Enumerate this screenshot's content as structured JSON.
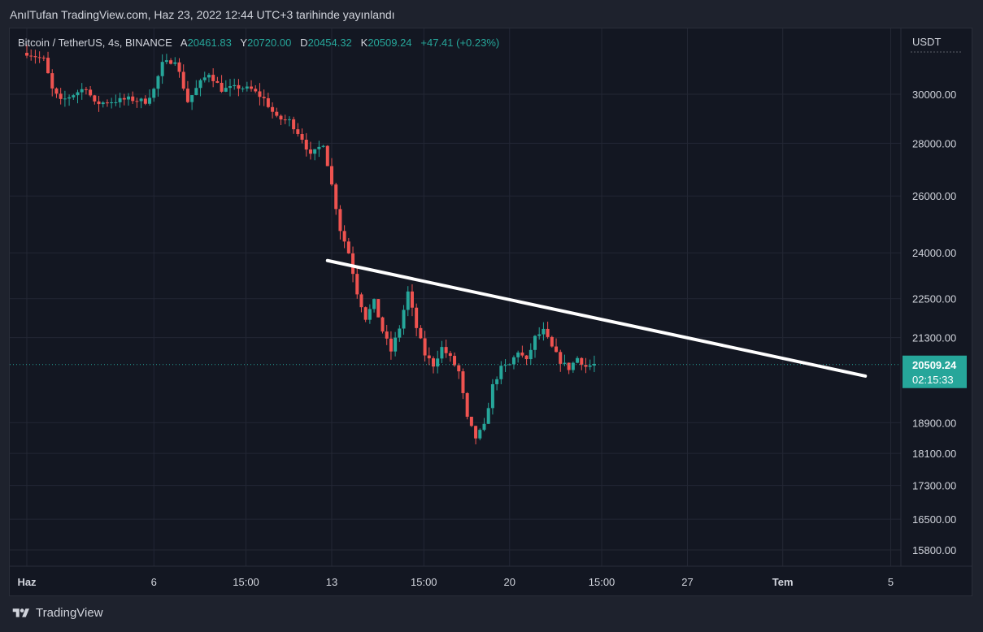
{
  "header": {
    "published_line": "AnılTufan TradingView.com, Haz 23, 2022 12:44 UTC+3 tarihinde yayınlandı"
  },
  "legend": {
    "symbol": "Bitcoin / TetherUS, 4s, BINANCE",
    "open_label": "A",
    "open_value": "20461.83",
    "high_label": "Y",
    "high_value": "20720.00",
    "low_label": "D",
    "low_value": "20454.32",
    "close_label": "K",
    "close_value": "20509.24",
    "change": "+47.41 (+0.23%)"
  },
  "footer": {
    "brand": "TradingView"
  },
  "colors": {
    "up": "#26a69a",
    "down": "#ef5350",
    "background": "#131722",
    "grid": "#232734",
    "text": "#d1d4dc",
    "trendline": "#ffffff"
  },
  "chart_data": {
    "type": "candlestick",
    "currency_label": "USDT",
    "y_ticks": [
      "30000.00",
      "28000.00",
      "26000.00",
      "24000.00",
      "22500.00",
      "21300.00",
      "18900.00",
      "18100.00",
      "17300.00",
      "16500.00",
      "15800.00"
    ],
    "x_ticks": [
      "Haz",
      "6",
      "15:00",
      "13",
      "15:00",
      "20",
      "15:00",
      "27",
      "Tem",
      "5"
    ],
    "last_price": "20509.24",
    "countdown": "02:15:33",
    "trendline": {
      "from": {
        "date": "2022-06-12 20:00",
        "price": 23740
      },
      "to": {
        "date": "2022-07-04 00:00",
        "price": 20180
      }
    },
    "price_path": [
      [
        "2022-06-01 00:00",
        31800
      ],
      [
        "2022-06-01 16:00",
        31500
      ],
      [
        "2022-06-02 00:00",
        30200
      ],
      [
        "2022-06-02 08:00",
        29700
      ],
      [
        "2022-06-02 20:00",
        30000
      ],
      [
        "2022-06-03 08:00",
        30300
      ],
      [
        "2022-06-03 16:00",
        29600
      ],
      [
        "2022-06-04 08:00",
        29700
      ],
      [
        "2022-06-05 00:00",
        29800
      ],
      [
        "2022-06-05 16:00",
        29700
      ],
      [
        "2022-06-06 00:00",
        30200
      ],
      [
        "2022-06-06 08:00",
        31300
      ],
      [
        "2022-06-06 20:00",
        31500
      ],
      [
        "2022-06-07 08:00",
        29700
      ],
      [
        "2022-06-07 20:00",
        30500
      ],
      [
        "2022-06-08 04:00",
        30900
      ],
      [
        "2022-06-08 16:00",
        30200
      ],
      [
        "2022-06-09 08:00",
        30300
      ],
      [
        "2022-06-09 20:00",
        30200
      ],
      [
        "2022-06-10 08:00",
        29800
      ],
      [
        "2022-06-10 20:00",
        29000
      ],
      [
        "2022-06-11 08:00",
        28900
      ],
      [
        "2022-06-11 20:00",
        28200
      ],
      [
        "2022-06-12 04:00",
        27500
      ],
      [
        "2022-06-12 16:00",
        28000
      ],
      [
        "2022-06-13 00:00",
        26400
      ],
      [
        "2022-06-13 08:00",
        24800
      ],
      [
        "2022-06-13 16:00",
        24000
      ],
      [
        "2022-06-14 00:00",
        22700
      ],
      [
        "2022-06-14 08:00",
        21900
      ],
      [
        "2022-06-14 16:00",
        22400
      ],
      [
        "2022-06-15 00:00",
        21500
      ],
      [
        "2022-06-15 08:00",
        20900
      ],
      [
        "2022-06-15 16:00",
        21600
      ],
      [
        "2022-06-16 00:00",
        22700
      ],
      [
        "2022-06-16 08:00",
        21600
      ],
      [
        "2022-06-16 16:00",
        20800
      ],
      [
        "2022-06-17 00:00",
        20500
      ],
      [
        "2022-06-17 08:00",
        21000
      ],
      [
        "2022-06-17 16:00",
        20700
      ],
      [
        "2022-06-18 00:00",
        20300
      ],
      [
        "2022-06-18 08:00",
        19000
      ],
      [
        "2022-06-18 16:00",
        18500
      ],
      [
        "2022-06-19 00:00",
        18800
      ],
      [
        "2022-06-19 08:00",
        19900
      ],
      [
        "2022-06-19 16:00",
        20400
      ],
      [
        "2022-06-20 00:00",
        20500
      ],
      [
        "2022-06-20 08:00",
        20900
      ],
      [
        "2022-06-20 16:00",
        20600
      ],
      [
        "2022-06-21 00:00",
        21300
      ],
      [
        "2022-06-21 08:00",
        21500
      ],
      [
        "2022-06-21 16:00",
        21000
      ],
      [
        "2022-06-22 00:00",
        20600
      ],
      [
        "2022-06-22 08:00",
        20400
      ],
      [
        "2022-06-22 16:00",
        20700
      ],
      [
        "2022-06-23 00:00",
        20450
      ],
      [
        "2022-06-23 08:00",
        20510
      ]
    ]
  }
}
